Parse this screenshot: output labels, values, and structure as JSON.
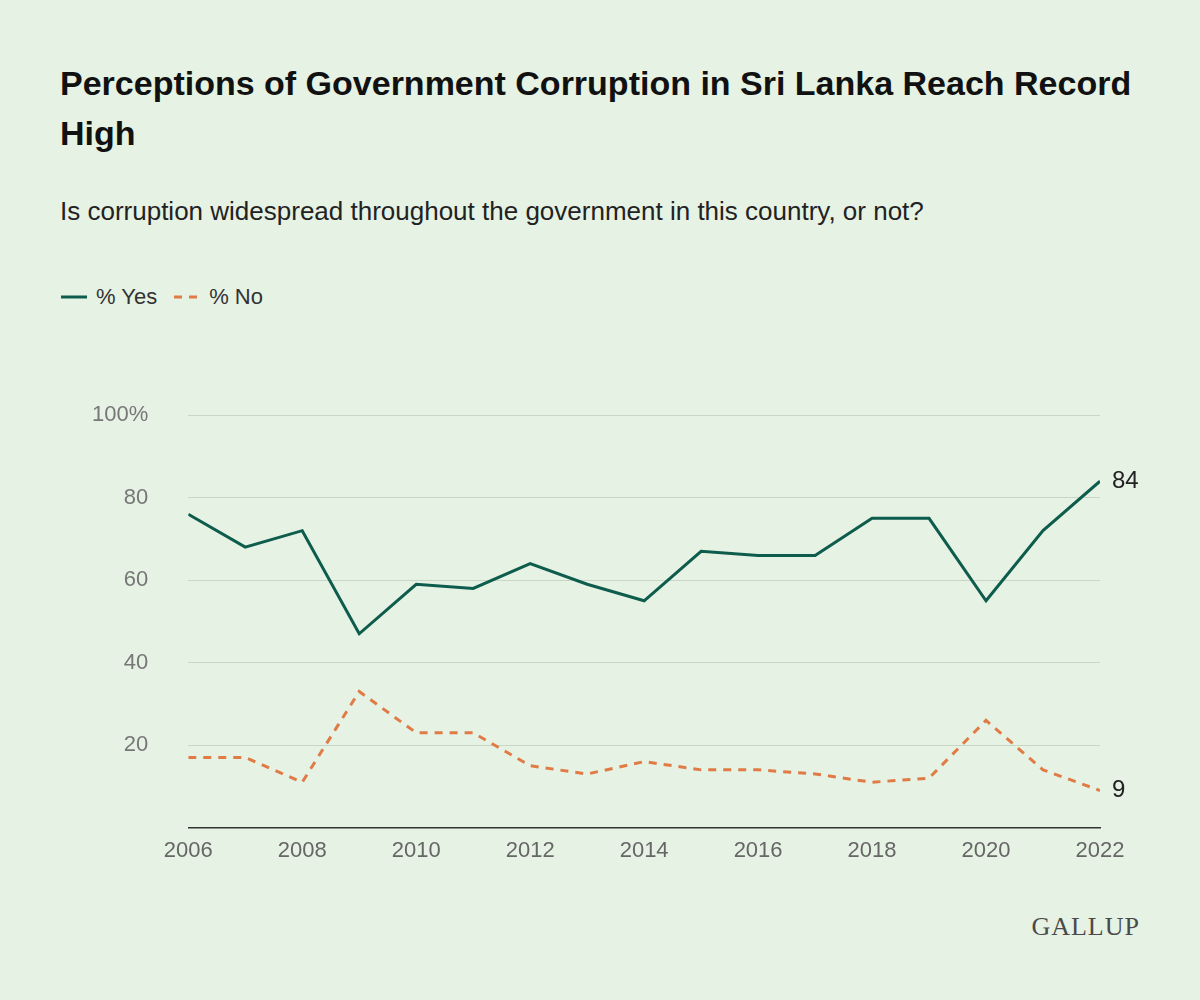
{
  "chart_data": {
    "type": "line",
    "title": "Perceptions of Government Corruption in Sri Lanka Reach Record High",
    "subtitle": "Is corruption widespread throughout the government in this country, or not?",
    "source": "GALLUP",
    "x": [
      2006,
      2007,
      2008,
      2009,
      2010,
      2011,
      2012,
      2013,
      2014,
      2015,
      2016,
      2017,
      2018,
      2019,
      2020,
      2021,
      2022
    ],
    "series": [
      {
        "name": "% Yes",
        "color": "#0d5c4c",
        "line_style": "solid",
        "values": [
          76,
          68,
          72,
          47,
          59,
          58,
          64,
          59,
          55,
          67,
          66,
          66,
          75,
          75,
          55,
          72,
          84
        ]
      },
      {
        "name": "% No",
        "color": "#e07b45",
        "line_style": "dashed",
        "values": [
          17,
          17,
          11,
          33,
          23,
          23,
          15,
          13,
          16,
          14,
          14,
          13,
          11,
          12,
          26,
          14,
          9
        ]
      }
    ],
    "xlim": [
      2006,
      2022
    ],
    "xticks": [
      2006,
      2008,
      2010,
      2012,
      2014,
      2016,
      2018,
      2020,
      2022
    ],
    "ylim": [
      0,
      100
    ],
    "yticks": [
      20,
      40,
      60,
      80,
      {
        "value": 100,
        "label": "100%"
      }
    ],
    "grid": true,
    "legend": "top-left",
    "annotations": [
      {
        "x": 2022,
        "y": 84,
        "text": "84"
      },
      {
        "x": 2022,
        "y": 9,
        "text": "9"
      }
    ]
  }
}
